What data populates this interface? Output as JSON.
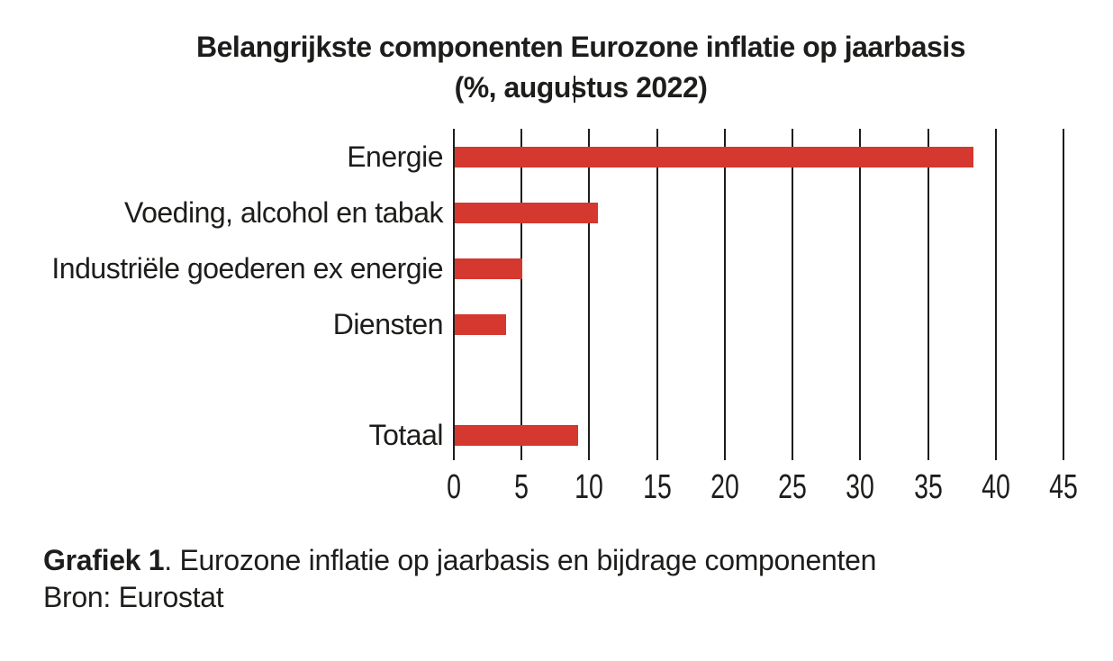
{
  "title": {
    "line1": "Belangrijkste componenten Eurozone inflatie op jaarbasis",
    "line2": "(%, augustus 2022)"
  },
  "chart_data": {
    "type": "bar",
    "orientation": "horizontal",
    "title": "Belangrijkste componenten Eurozone inflatie op jaarbasis (%, augustus 2022)",
    "categories": [
      "Energie",
      "Voeding, alcohol en tabak",
      "Industriële goederen ex energie",
      "Diensten",
      "Totaal"
    ],
    "values": [
      38.3,
      10.6,
      5.0,
      3.8,
      9.1
    ],
    "xlabel": "",
    "ylabel": "",
    "xlim": [
      0,
      45
    ],
    "xticks": [
      0,
      5,
      10,
      15,
      20,
      25,
      30,
      35,
      40,
      45
    ],
    "xtick_labels": [
      "0",
      "5",
      "10",
      "15",
      "20",
      "25",
      "30",
      "35",
      "40",
      "45"
    ],
    "grid": "vertical-only",
    "legend": "none",
    "notes": "empty row gap between Diensten and Totaal; bars drawn over gridlines",
    "bar_color": "#d4382e",
    "grid_color": "#1d1d1b"
  },
  "caption": {
    "label": "Grafiek 1",
    "rest": ". Eurozone inflatie op jaarbasis en bijdrage componenten",
    "source": "Bron: Eurostat"
  },
  "colors": {
    "background": "#ffffff",
    "text": "#1d1d1b",
    "bar": "#d4382e"
  }
}
